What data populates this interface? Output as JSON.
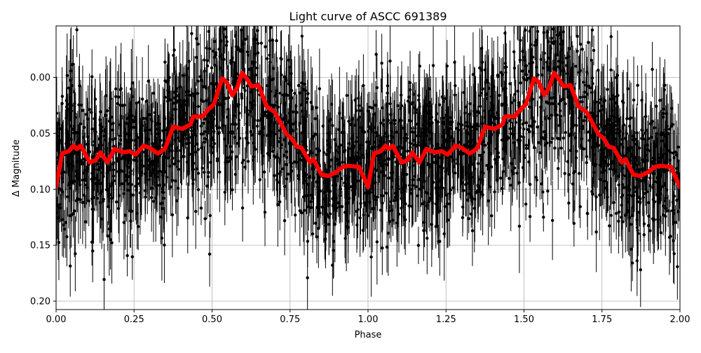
{
  "chart_data": {
    "type": "scatter",
    "title": "Light curve of ASCC 691389",
    "xlabel": "Phase",
    "ylabel": "Δ Magnitude",
    "xlim": [
      0.0,
      2.0
    ],
    "ylim": [
      0.2075,
      -0.046
    ],
    "y_inverted": true,
    "grid": true,
    "x_ticks": [
      "0.00",
      "0.25",
      "0.50",
      "0.75",
      "1.00",
      "1.25",
      "1.50",
      "1.75",
      "2.00"
    ],
    "y_ticks": [
      "0.00",
      "0.05",
      "0.10",
      "0.15",
      "0.20"
    ],
    "observations": {
      "style": "black points with vertical error bars",
      "color": "#000000",
      "note_visible": "dense scatter spanning the full y-range"
    },
    "model": {
      "color": "#ff0000",
      "x": [
        0.0,
        0.019,
        0.041,
        0.056,
        0.067,
        0.079,
        0.108,
        0.127,
        0.142,
        0.165,
        0.187,
        0.214,
        0.236,
        0.255,
        0.281,
        0.3,
        0.326,
        0.349,
        0.375,
        0.405,
        0.431,
        0.439,
        0.469,
        0.487,
        0.506,
        0.532,
        0.547,
        0.565,
        0.581,
        0.596,
        0.611,
        0.626,
        0.649,
        0.675,
        0.701,
        0.739,
        0.754,
        0.772,
        0.787,
        0.814,
        0.825,
        0.851,
        0.874,
        0.896,
        0.919,
        0.937,
        0.971,
        0.997,
        1.0,
        1.019,
        1.041,
        1.056,
        1.067,
        1.079,
        1.108,
        1.127,
        1.142,
        1.165,
        1.187,
        1.214,
        1.236,
        1.255,
        1.281,
        1.3,
        1.326,
        1.349,
        1.375,
        1.405,
        1.431,
        1.439,
        1.469,
        1.487,
        1.506,
        1.532,
        1.547,
        1.565,
        1.581,
        1.596,
        1.611,
        1.626,
        1.649,
        1.675,
        1.701,
        1.739,
        1.754,
        1.772,
        1.787,
        1.814,
        1.825,
        1.851,
        1.874,
        1.896,
        1.919,
        1.937,
        1.971,
        2.0
      ],
      "y": [
        0.098,
        0.068,
        0.066,
        0.061,
        0.064,
        0.061,
        0.076,
        0.074,
        0.067,
        0.076,
        0.064,
        0.067,
        0.066,
        0.069,
        0.061,
        0.063,
        0.068,
        0.064,
        0.044,
        0.046,
        0.042,
        0.035,
        0.035,
        0.029,
        0.024,
        0.001,
        0.004,
        0.016,
        0.009,
        -0.004,
        0.001,
        0.008,
        0.007,
        0.026,
        0.031,
        0.051,
        0.054,
        0.062,
        0.063,
        0.076,
        0.073,
        0.087,
        0.088,
        0.085,
        0.08,
        0.079,
        0.08,
        0.096,
        0.098,
        0.068,
        0.066,
        0.061,
        0.064,
        0.061,
        0.076,
        0.074,
        0.067,
        0.076,
        0.064,
        0.067,
        0.066,
        0.069,
        0.061,
        0.063,
        0.068,
        0.064,
        0.044,
        0.046,
        0.042,
        0.035,
        0.035,
        0.029,
        0.024,
        0.001,
        0.004,
        0.016,
        0.009,
        -0.004,
        0.001,
        0.008,
        0.007,
        0.026,
        0.031,
        0.051,
        0.054,
        0.062,
        0.063,
        0.076,
        0.073,
        0.087,
        0.088,
        0.085,
        0.08,
        0.079,
        0.08,
        0.098
      ]
    }
  }
}
